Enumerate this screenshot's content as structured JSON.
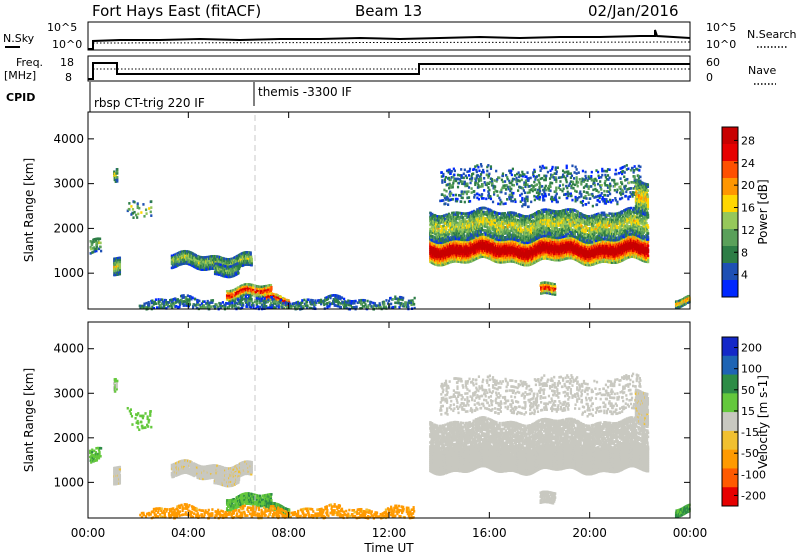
{
  "header": {
    "title": "Fort Hays East (fitACF)",
    "beam": "Beam 13",
    "date": "02/Jan/2016"
  },
  "panels": {
    "nsky": {
      "label": "N.Sky",
      "left_ticks": [
        "10^5",
        "10^0"
      ],
      "right_label": "N.Search",
      "right_ticks": [
        "10^5",
        "10^0"
      ]
    },
    "freq": {
      "label": "Freq.",
      "unit": "[MHz]",
      "left_ticks": [
        "18",
        "8"
      ],
      "right_label": "Nave",
      "right_ticks": [
        "60",
        "0"
      ]
    },
    "cpid": {
      "label": "CPID",
      "segments": [
        "rbsp CT-trig 220 IF",
        "themis -3300 IF"
      ]
    }
  },
  "chart_data": [
    {
      "type": "heatmap",
      "name": "power",
      "ylabel": "Slant Range [km]",
      "yticks": [
        "1000",
        "2000",
        "3000",
        "4000"
      ],
      "ylim": [
        200,
        4600
      ],
      "xlim_hours": [
        0,
        24
      ],
      "colorbar": {
        "label": "Power [dB]",
        "ticks": [
          "4",
          "8",
          "12",
          "16",
          "20",
          "24",
          "28"
        ],
        "colors": [
          "#0028ff",
          "#1e50b4",
          "#2d7d46",
          "#5aa05a",
          "#96c85a",
          "#ffd700",
          "#ff9600",
          "#ff5000",
          "#e60000",
          "#c80000"
        ]
      },
      "annotations": [
        "vertical dashed line at ~06:30 UT"
      ]
    },
    {
      "type": "heatmap",
      "name": "velocity",
      "ylabel": "Slant Range [km]",
      "yticks": [
        "1000",
        "2000",
        "3000",
        "4000"
      ],
      "ylim": [
        200,
        4600
      ],
      "xlim_hours": [
        0,
        24
      ],
      "colorbar": {
        "label": "Velocity [m s-1]",
        "ticks": [
          "200",
          "100",
          "50",
          "15",
          "-15",
          "-50",
          "-100",
          "-200"
        ],
        "colors": [
          "#1428c8",
          "#1e64b4",
          "#2d8c46",
          "#64c83c",
          "#c8c8c0",
          "#f0c030",
          "#ff9a00",
          "#ff5a00",
          "#e60000"
        ]
      }
    }
  ],
  "xaxis": {
    "label": "Time UT",
    "ticks": [
      "00:00",
      "04:00",
      "08:00",
      "12:00",
      "16:00",
      "20:00",
      "00:00"
    ]
  }
}
